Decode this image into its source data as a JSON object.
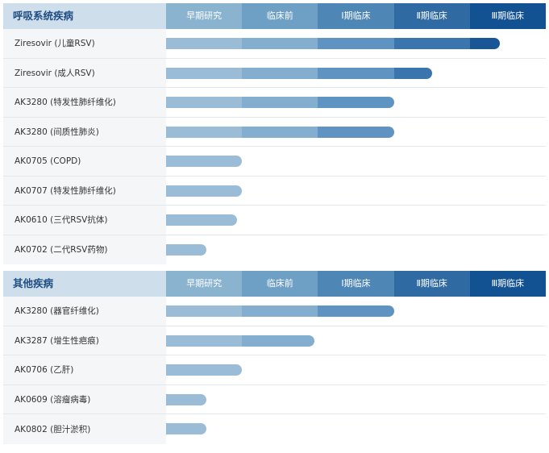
{
  "stages": [
    "早期研究",
    "临床前",
    "Ⅰ期临床",
    "Ⅱ期临床",
    "Ⅲ期临床"
  ],
  "colors": {
    "stage_headers": [
      "#8ab3d0",
      "#6e9fc4",
      "#4e86b5",
      "#2f6aa3",
      "#125192"
    ],
    "bar_segments": [
      "#9bbcd6",
      "#84aed0",
      "#5f93c1",
      "#3a75ad",
      "#1a5595"
    ],
    "header_bg": "#cfdeeb",
    "title_text": "#1f4e84",
    "label_bg": "#f5f6f8"
  },
  "chart_data": [
    {
      "type": "bar",
      "orientation": "horizontal",
      "title": "呼吸系统疾病",
      "categories": [
        "Ziresovir (儿童RSV)",
        "Ziresovir (成人RSV)",
        "AK3280 (特发性肺纤维化)",
        "AK3280 (间质性肺炎)",
        "AK0705 (COPD)",
        "AK0707 (特发性肺纤维化)",
        "AK0610 (三代RSV抗体)",
        "AK0702 (二代RSV药物)"
      ],
      "values": [
        4.4,
        3.5,
        3.0,
        3.0,
        1.0,
        1.0,
        0.93,
        0.53
      ],
      "xlim": [
        0,
        5
      ]
    },
    {
      "type": "bar",
      "orientation": "horizontal",
      "title": "其他疾病",
      "categories": [
        "AK3280 (器官纤维化)",
        "AK3287 (增生性疤痕)",
        "AK0706 (乙肝)",
        "AK0609 (溶瘤病毒)",
        "AK0802 (胆汁淤积)"
      ],
      "values": [
        3.0,
        1.95,
        1.0,
        0.53,
        0.53
      ],
      "xlim": [
        0,
        5
      ]
    }
  ]
}
